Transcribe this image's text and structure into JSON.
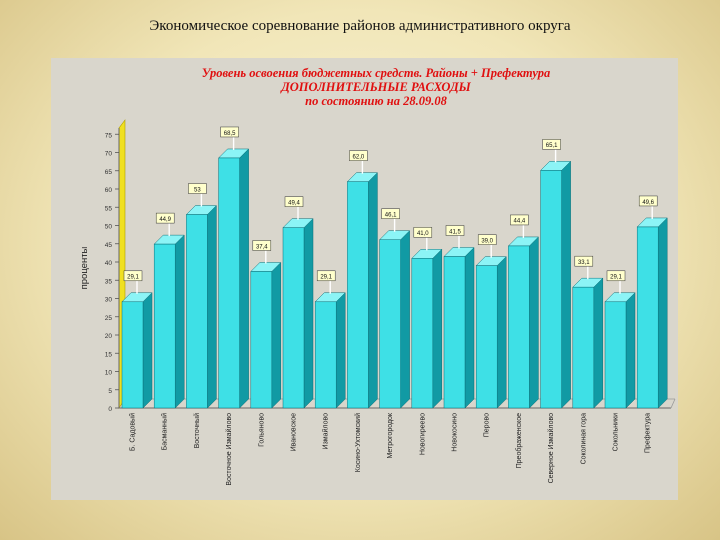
{
  "slide": {
    "title": "Экономическое соревнование районов административного округа"
  },
  "chart_data": {
    "type": "bar",
    "title_lines": [
      "Уровень освоения бюджетных средств. Районы + Префектура",
      "ДОПОЛНИТЕЛЬНЫЕ   РАСХОДЫ",
      "по состоянию на 28.09.08"
    ],
    "ylabel": "проценты",
    "ylim": [
      0,
      80
    ],
    "yticks": [
      0,
      5,
      10,
      15,
      20,
      25,
      30,
      35,
      40,
      45,
      50,
      55,
      60,
      65,
      70,
      75
    ],
    "categories": [
      "Б. Садовый",
      "Басманный",
      "Восточный",
      "Восточное Измайлово",
      "Гольяново",
      "Ивановское",
      "Измайлово",
      "Косино-Ухтомский",
      "Метрогородок",
      "Новогиреево",
      "Новокосино",
      "Перово",
      "Преображенское",
      "Северное Измайлово",
      "Соколиная гора",
      "Сокольники",
      "Префектура"
    ],
    "values": [
      29.1,
      44.9,
      53.0,
      68.5,
      37.4,
      49.4,
      29.1,
      62.0,
      46.1,
      41.0,
      41.5,
      39.0,
      44.4,
      65.1,
      33.1,
      29.1,
      49.6
    ],
    "bar_labels": [
      "29,1",
      "44,9",
      "53",
      "68,5",
      "37,4",
      "49,4",
      "29,1",
      "62,0",
      "46,1",
      "41,0",
      "41,5",
      "39,0",
      "44,4",
      "65,1",
      "33,1",
      "29,1",
      "49,6"
    ],
    "colors": {
      "bar_front": "#3ee0e6",
      "bar_side": "#119aa4",
      "bar_top": "#8cf4f6",
      "title_red": "#e01010",
      "label_box": "#ffffcc",
      "axis_yellow": "#f0e020"
    },
    "grid": false,
    "legend": "none"
  }
}
